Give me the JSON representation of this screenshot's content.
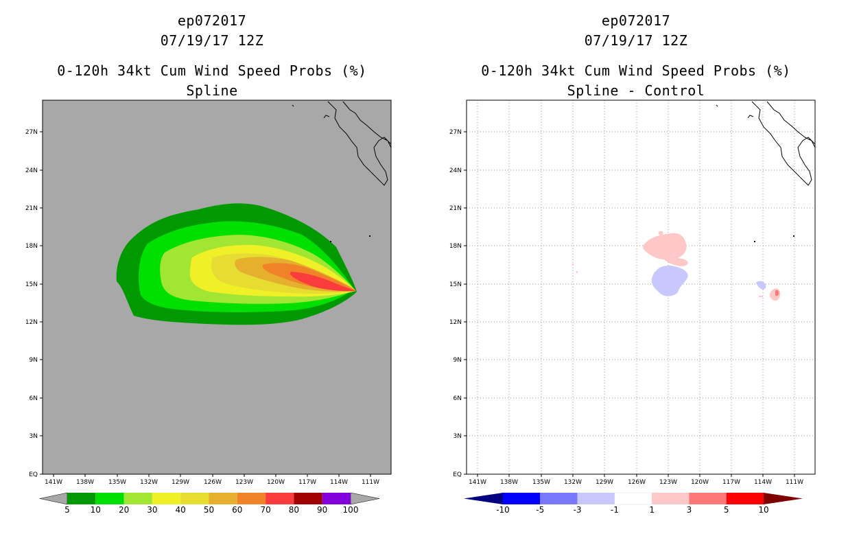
{
  "left_panel": {
    "storm_id": "ep072017",
    "datetime": "07/19/17 12Z",
    "product": "0-120h 34kt Cum Wind Speed Probs (%)",
    "subtitle": "Spline",
    "background_color": "#a8a8a8",
    "lat_labels": [
      "27N",
      "24N",
      "21N",
      "18N",
      "15N",
      "12N",
      "9N",
      "6N",
      "3N",
      "EQ"
    ],
    "lon_labels": [
      "141W",
      "138W",
      "135W",
      "132W",
      "129W",
      "126W",
      "123W",
      "120W",
      "117W",
      "114W",
      "111W"
    ],
    "colorbar": {
      "labels": [
        "5",
        "10",
        "20",
        "30",
        "40",
        "50",
        "60",
        "70",
        "80",
        "90",
        "100"
      ],
      "colors": [
        "#009a00",
        "#00e000",
        "#a0e632",
        "#f0f028",
        "#e6dc32",
        "#e6af2d",
        "#f08228",
        "#fa3c3c",
        "#a00000",
        "#8200dc"
      ]
    }
  },
  "right_panel": {
    "storm_id": "ep072017",
    "datetime": "07/19/17 12Z",
    "product": "0-120h 34kt Cum Wind Speed Probs (%)",
    "subtitle": "Spline - Control",
    "background_color": "#ffffff",
    "lat_labels": [
      "27N",
      "24N",
      "21N",
      "18N",
      "15N",
      "12N",
      "9N",
      "6N",
      "3N",
      "EQ"
    ],
    "lon_labels": [
      "141W",
      "138W",
      "135W",
      "132W",
      "129W",
      "126W",
      "123W",
      "120W",
      "117W",
      "114W",
      "111W"
    ],
    "colorbar": {
      "labels": [
        "-10",
        "-5",
        "-3",
        "-1",
        "1",
        "3",
        "5",
        "10"
      ],
      "colors": [
        "#0000c8",
        "#0000ff",
        "#7878ff",
        "#c8c8ff",
        "#ffffff",
        "#ffc8c8",
        "#ff7878",
        "#ff0000",
        "#c80000"
      ],
      "end_colors": [
        "#000080",
        "#800000"
      ]
    }
  }
}
